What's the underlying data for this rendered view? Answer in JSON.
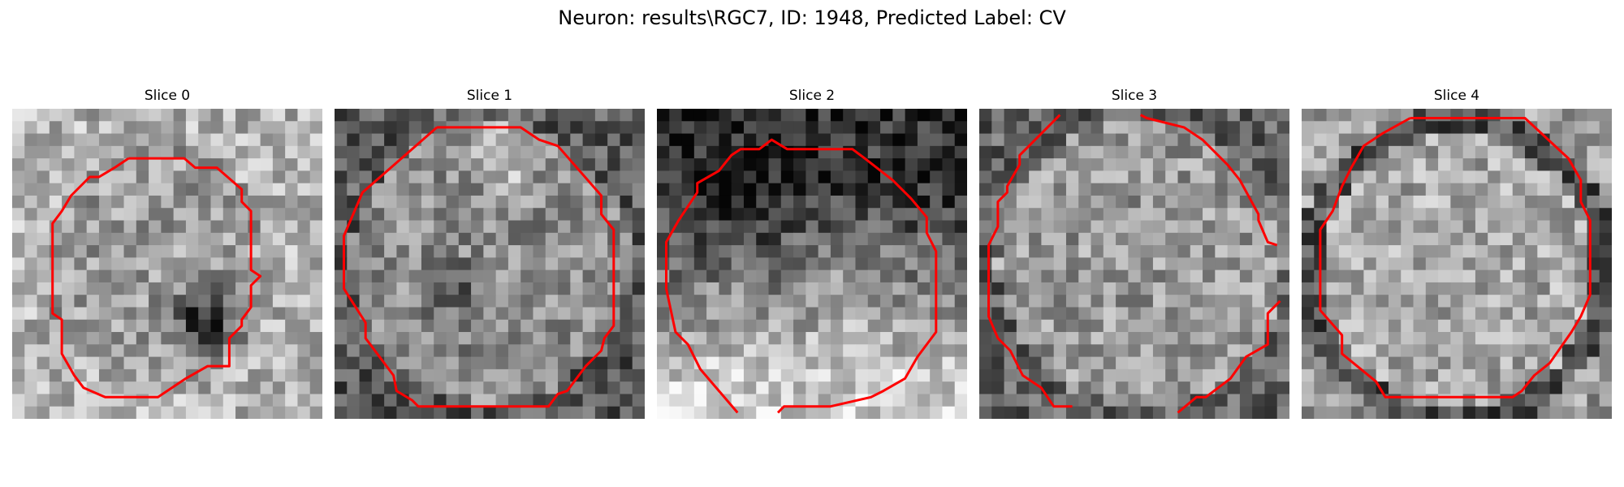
{
  "figure": {
    "title": "Neuron: results\\RGC7, ID: 1948, Predicted Label: CV"
  },
  "panels": [
    {
      "title": "Slice 0"
    },
    {
      "title": "Slice 1"
    },
    {
      "title": "Slice 2"
    },
    {
      "title": "Slice 3"
    },
    {
      "title": "Slice 4"
    }
  ],
  "colors": {
    "contour": "#ff0000",
    "background": "#ffffff"
  }
}
